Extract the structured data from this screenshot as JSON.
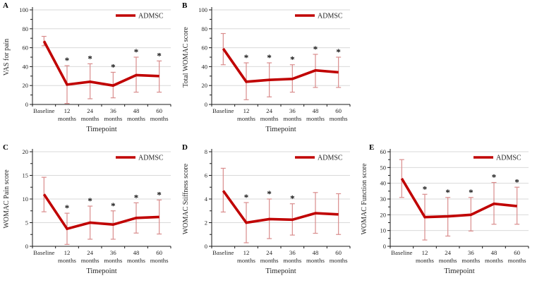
{
  "figure": {
    "panels": [
      "A",
      "B",
      "C",
      "D",
      "E"
    ],
    "significance_marker": "*"
  },
  "colors": {
    "line": "#c00000",
    "error_bar": "#d98c8c",
    "grid": "#d9d9d9",
    "axis": "#1a1a1a",
    "text": "#262626"
  },
  "chart_data": [
    {
      "panel": "A",
      "type": "line",
      "ylabel": "VAS for pain",
      "xlabel": "Timepoint",
      "legend": "ADMSC",
      "legend_position": "top-right-inside",
      "grid": true,
      "ylim": [
        0,
        100
      ],
      "ytick_step": 20,
      "categories": [
        "Baseline",
        "12 months",
        "24 months",
        "36 months",
        "48 months",
        "60 months"
      ],
      "series": [
        {
          "name": "ADMSC",
          "values": [
            67,
            21,
            24,
            20,
            31,
            30
          ],
          "err_low": [
            62,
            1,
            6,
            7,
            13,
            13
          ],
          "err_high": [
            72,
            41,
            43,
            34,
            50,
            46
          ]
        }
      ],
      "significance": [
        false,
        true,
        true,
        true,
        true,
        true
      ]
    },
    {
      "panel": "B",
      "type": "line",
      "ylabel": "Total WOMAC score",
      "xlabel": "Timepoint",
      "legend": "ADMSC",
      "legend_position": "top-right-inside",
      "grid": true,
      "ylim": [
        0,
        100
      ],
      "ytick_step": 20,
      "categories": [
        "Baseline",
        "12 months",
        "24 months",
        "36 months",
        "48 months",
        "60 months"
      ],
      "series": [
        {
          "name": "ADMSC",
          "values": [
            59,
            24,
            26,
            27,
            36,
            34
          ],
          "err_low": [
            42,
            5,
            8,
            13,
            18,
            18
          ],
          "err_high": [
            75,
            44,
            44,
            42,
            53,
            50
          ]
        }
      ],
      "significance": [
        false,
        true,
        true,
        true,
        true,
        true
      ]
    },
    {
      "panel": "C",
      "type": "line",
      "ylabel": "WOMAC Pain score",
      "xlabel": "Timepoint",
      "legend": "ADMSC",
      "legend_position": "top-right-inside",
      "grid": true,
      "ylim": [
        0,
        20
      ],
      "ytick_step": 5,
      "categories": [
        "Baseline",
        "12 months",
        "24 months",
        "36 months",
        "48 months",
        "60 months"
      ],
      "series": [
        {
          "name": "ADMSC",
          "values": [
            11,
            3.7,
            5,
            4.6,
            6,
            6.2
          ],
          "err_low": [
            7.3,
            0.4,
            1.5,
            1.5,
            2.8,
            2.6
          ],
          "err_high": [
            14.6,
            7,
            8.5,
            7.5,
            9.2,
            9.8
          ]
        }
      ],
      "significance": [
        false,
        true,
        true,
        true,
        true,
        true
      ]
    },
    {
      "panel": "D",
      "type": "line",
      "ylabel": "WOMAC Stiffness score",
      "xlabel": "Timepoint",
      "legend": "ADMSC",
      "legend_position": "top-right-inside",
      "grid": true,
      "ylim": [
        0,
        8
      ],
      "ytick_step": 2,
      "categories": [
        "Baseline",
        "12 months",
        "24 months",
        "36 months",
        "48 months",
        "60 months"
      ],
      "series": [
        {
          "name": "ADMSC",
          "values": [
            4.7,
            2.0,
            2.3,
            2.25,
            2.8,
            2.7
          ],
          "err_low": [
            2.9,
            0.3,
            0.65,
            0.95,
            1.1,
            1.0
          ],
          "err_high": [
            6.6,
            3.7,
            4.0,
            3.6,
            4.55,
            4.45
          ]
        }
      ],
      "significance": [
        false,
        true,
        true,
        true,
        false,
        false
      ]
    },
    {
      "panel": "E",
      "type": "line",
      "ylabel": "WOMAC Function score",
      "xlabel": "Timepoint",
      "legend": "ADMSC",
      "legend_position": "top-right-inside",
      "grid": true,
      "ylim": [
        0,
        60
      ],
      "ytick_step": 10,
      "categories": [
        "Baseline",
        "12 months",
        "24 months",
        "36 months",
        "48 months",
        "60 months"
      ],
      "series": [
        {
          "name": "ADMSC",
          "values": [
            43,
            18.5,
            19,
            20,
            27,
            25.5
          ],
          "err_low": [
            31,
            4,
            6.5,
            9.7,
            14,
            14
          ],
          "err_high": [
            55,
            33,
            31,
            31,
            40.5,
            37.5
          ]
        }
      ],
      "significance": [
        false,
        true,
        true,
        true,
        true,
        true
      ]
    }
  ]
}
